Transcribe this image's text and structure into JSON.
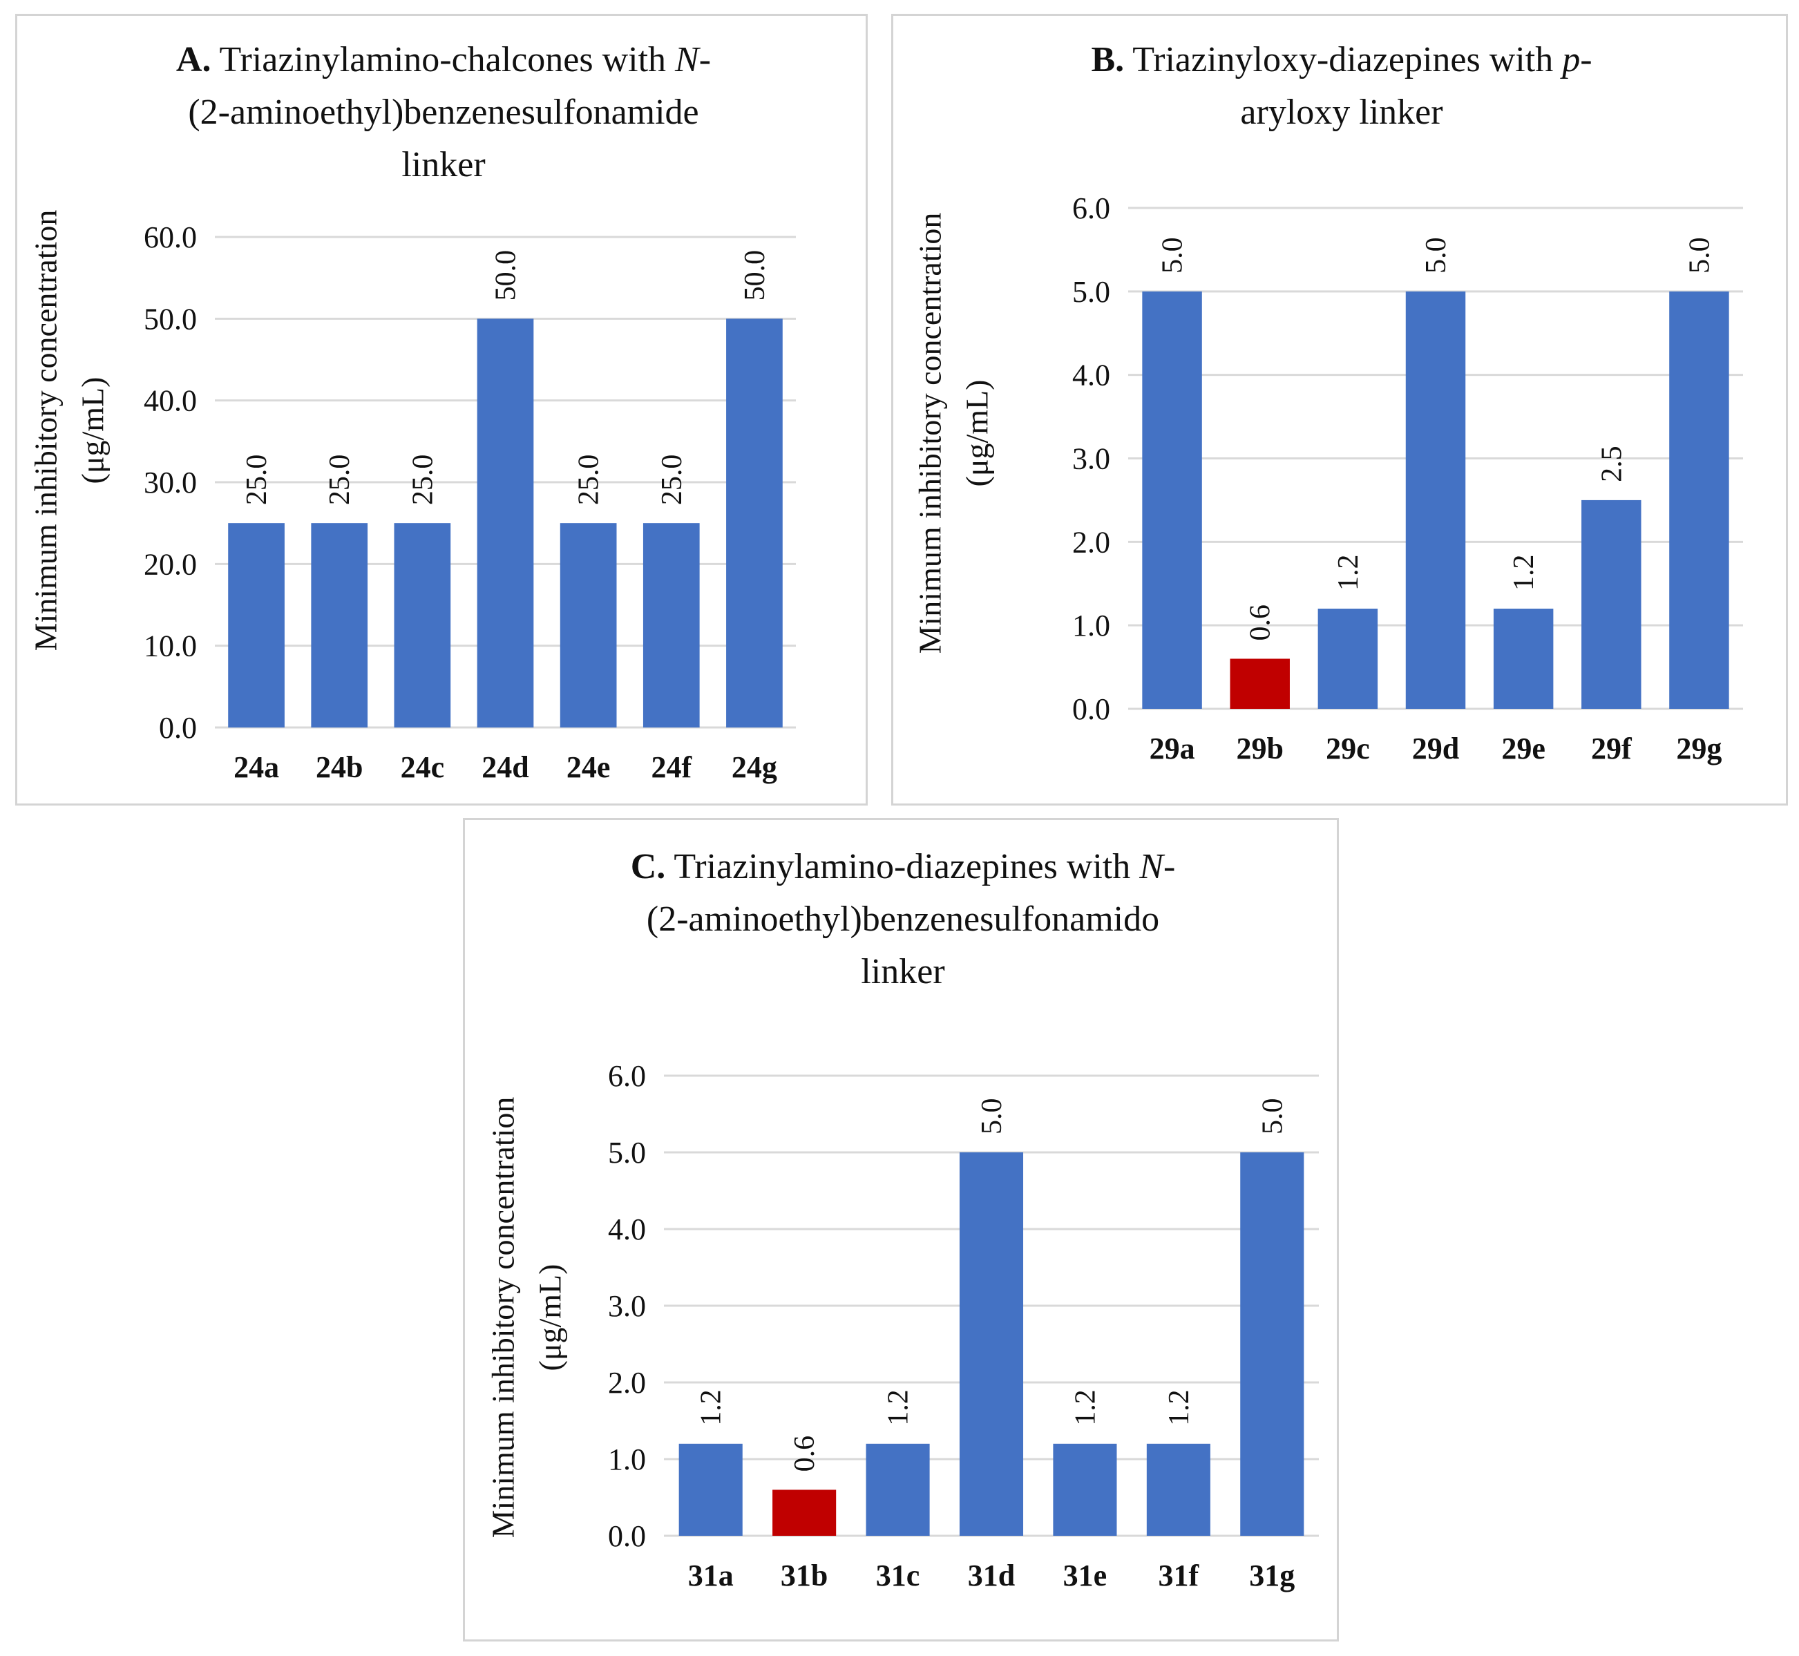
{
  "figure": {
    "colors": {
      "bar": "#4472c4",
      "highlight": "#c00000",
      "grid": "#d9d9d9",
      "text": "#111111",
      "border": "#d4d4d4"
    }
  },
  "chart_data": [
    {
      "id": "A",
      "type": "bar",
      "title_letter": "A.",
      "title_pre": "Triazinylamino-chalcones with",
      "title_ital": "N",
      "title_post": "-(2-aminoethyl)benzenesulfonamide linker",
      "title_line1": "Triazinylamino-chalcones with ",
      "title_line1_italic": "N",
      "title_line1_tail": "-",
      "title_line2": "(2-aminoethyl)benzenesulfonamide",
      "title_line3": "linker",
      "ylabel_line1": "Minimum inhibitory concentration",
      "ylabel_line2": "(μg/mL)",
      "xlabel": "",
      "ylim": [
        0,
        60
      ],
      "yticks": [
        "0.0",
        "10.0",
        "20.0",
        "30.0",
        "40.0",
        "50.0",
        "60.0"
      ],
      "categories": [
        "24a",
        "24b",
        "24c",
        "24d",
        "24e",
        "24f",
        "24g"
      ],
      "values": [
        25.0,
        25.0,
        25.0,
        50.0,
        25.0,
        25.0,
        50.0
      ],
      "labels": [
        "25.0",
        "25.0",
        "25.0",
        "50.0",
        "25.0",
        "25.0",
        "50.0"
      ],
      "highlight": [
        false,
        false,
        false,
        false,
        false,
        false,
        false
      ],
      "grid": true
    },
    {
      "id": "B",
      "type": "bar",
      "title_letter": "B.",
      "title_line1": "Triazinyloxy-diazepines with ",
      "title_line1_italic": "p",
      "title_line1_tail": "-",
      "title_line2": "aryloxy linker",
      "title_line3": "",
      "ylabel_line1": "Minimum inhibitory concentration",
      "ylabel_line2": "(μg/mL)",
      "xlabel": "",
      "ylim": [
        0,
        6
      ],
      "yticks": [
        "0.0",
        "1.0",
        "2.0",
        "3.0",
        "4.0",
        "5.0",
        "6.0"
      ],
      "categories": [
        "29a",
        "29b",
        "29c",
        "29d",
        "29e",
        "29f",
        "29g"
      ],
      "values": [
        5.0,
        0.6,
        1.2,
        5.0,
        1.2,
        2.5,
        5.0
      ],
      "labels": [
        "5.0",
        "0.6",
        "1.2",
        "5.0",
        "1.2",
        "2.5",
        "5.0"
      ],
      "highlight": [
        false,
        true,
        false,
        false,
        false,
        false,
        false
      ],
      "grid": true
    },
    {
      "id": "C",
      "type": "bar",
      "title_letter": "C.",
      "title_line1": "Triazinylamino-diazepines with ",
      "title_line1_italic": "N",
      "title_line1_tail": "-",
      "title_line2": "(2-aminoethyl)benzenesulfonamido",
      "title_line3": "linker",
      "ylabel_line1": "Minimum inhibitory concentration",
      "ylabel_line2": "(μg/mL)",
      "xlabel": "",
      "ylim": [
        0,
        6
      ],
      "yticks": [
        "0.0",
        "1.0",
        "2.0",
        "3.0",
        "4.0",
        "5.0",
        "6.0"
      ],
      "categories": [
        "31a",
        "31b",
        "31c",
        "31d",
        "31e",
        "31f",
        "31g"
      ],
      "values": [
        1.2,
        0.6,
        1.2,
        5.0,
        1.2,
        1.2,
        5.0
      ],
      "labels": [
        "1.2",
        "0.6",
        "1.2",
        "5.0",
        "1.2",
        "1.2",
        "5.0"
      ],
      "highlight": [
        false,
        true,
        false,
        false,
        false,
        false,
        false
      ],
      "grid": true
    }
  ]
}
